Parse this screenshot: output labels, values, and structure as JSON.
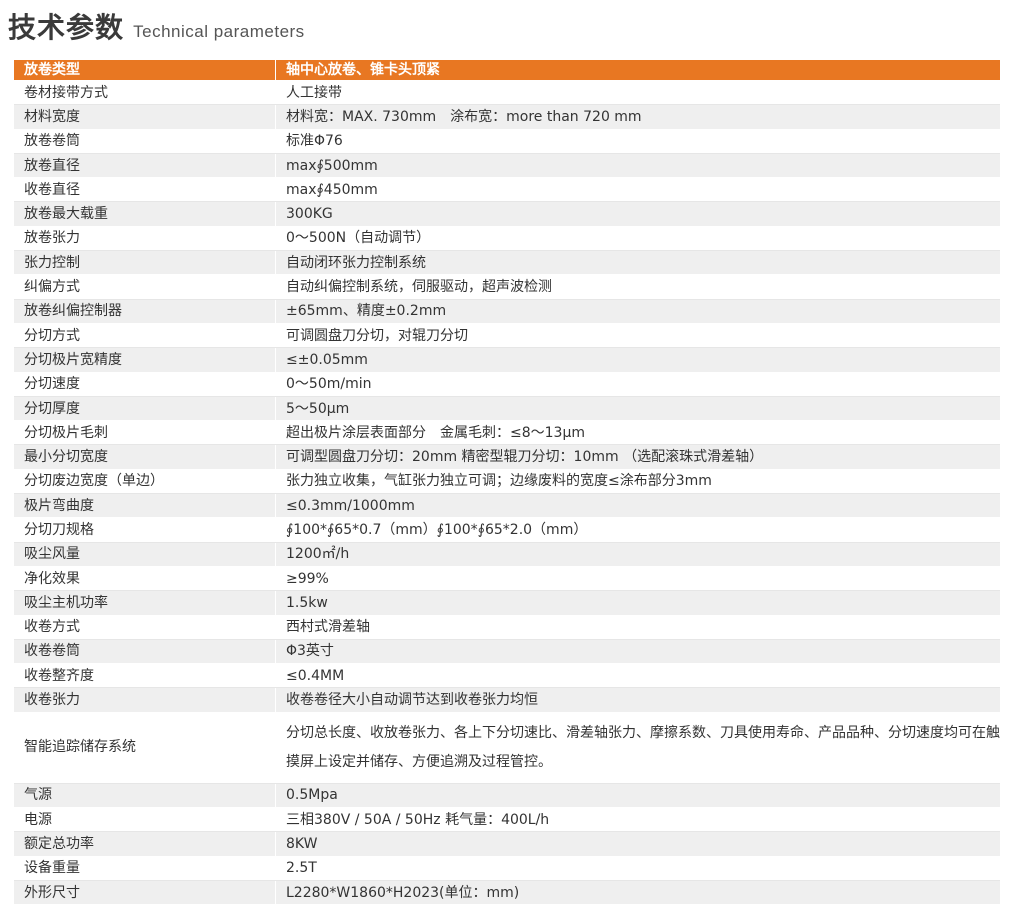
{
  "heading": {
    "zh": "技术参数",
    "en": "Technical  parameters"
  },
  "accent_color": "#e87722",
  "table": {
    "header": {
      "key": "放卷类型",
      "value": "轴中心放卷、锥卡头顶紧"
    },
    "rows": [
      {
        "key": "卷材接带方式",
        "value": "人工接带"
      },
      {
        "key": "材料宽度",
        "value": "材料宽：MAX. 730mm　涂布宽：more than 720 mm"
      },
      {
        "key": "放卷卷筒",
        "value": "标准Φ76"
      },
      {
        "key": "放卷直径",
        "value": "max∮500mm"
      },
      {
        "key": "收卷直径",
        "value": "max∮450mm"
      },
      {
        "key": "放卷最大载重",
        "value": "300KG"
      },
      {
        "key": "放卷张力",
        "value": "0～500N（自动调节）"
      },
      {
        "key": "张力控制",
        "value": "自动闭环张力控制系统"
      },
      {
        "key": "纠偏方式",
        "value": "自动纠偏控制系统，伺服驱动，超声波检测"
      },
      {
        "key": "放卷纠偏控制器",
        "value": "±65mm、精度±0.2mm"
      },
      {
        "key": "分切方式",
        "value": "可调圆盘刀分切，对辊刀分切"
      },
      {
        "key": "分切极片宽精度",
        "value": "≤±0.05mm"
      },
      {
        "key": "分切速度",
        "value": "0～50m/min"
      },
      {
        "key": "分切厚度",
        "value": "5～50μm"
      },
      {
        "key": "分切极片毛刺",
        "value": "超出极片涂层表面部分　金属毛刺：≤8～13μm"
      },
      {
        "key": "最小分切宽度",
        "value": "可调型圆盘刀分切：20mm 精密型辊刀分切：10mm （选配滚珠式滑差轴）"
      },
      {
        "key": "分切废边宽度（单边）",
        "value": "张力独立收集，气缸张力独立可调；边缘废料的宽度≤涂布部分3mm"
      },
      {
        "key": "极片弯曲度",
        "value": "≤0.3mm/1000mm"
      },
      {
        "key": "分切刀规格",
        "value": "∮100*∮65*0.7（mm）∮100*∮65*2.0（mm）"
      },
      {
        "key": "吸尘风量",
        "value": "1200㎡/h"
      },
      {
        "key": "净化效果",
        "value": "≥99%"
      },
      {
        "key": "吸尘主机功率",
        "value": "1.5kw"
      },
      {
        "key": "收卷方式",
        "value": "西村式滑差轴"
      },
      {
        "key": "收卷卷筒",
        "value": "Φ3英寸"
      },
      {
        "key": "收卷整齐度",
        "value": "≤0.4MM"
      },
      {
        "key": "收卷张力",
        "value": "收卷卷径大小自动调节达到收卷张力均恒"
      },
      {
        "key": "智能追踪储存系统",
        "value": "分切总长度、收放卷张力、各上下分切速比、滑差轴张力、摩擦系数、刀具使用寿命、产品品种、分切速度均可在触摸屏上设定并储存、方便追溯及过程管控。",
        "tall": true
      },
      {
        "key": "气源",
        "value": "0.5Mpa"
      },
      {
        "key": "电源",
        "value": "三相380V / 50A / 50Hz  耗气量：400L/h"
      },
      {
        "key": "额定总功率",
        "value": "8KW"
      },
      {
        "key": "设备重量",
        "value": "2.5T"
      },
      {
        "key": "外形尺寸",
        "value": "L2280*W1860*H2023(单位：mm)"
      }
    ]
  }
}
